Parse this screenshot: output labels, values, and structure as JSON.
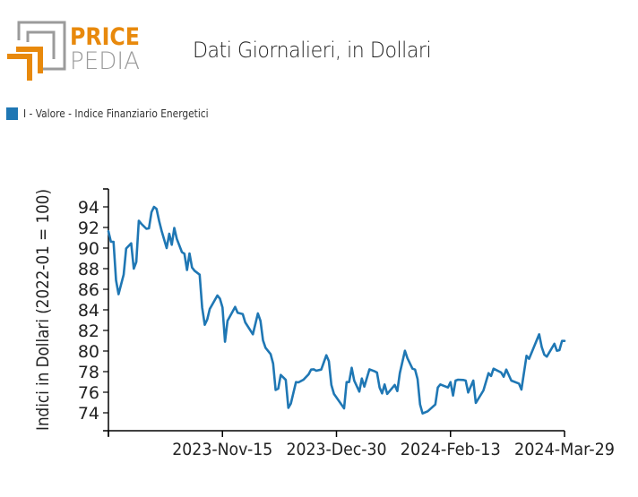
{
  "logo": {
    "word1": "PRICE",
    "word2": "PEDIA",
    "orange": "#e8890c",
    "grey": "#9b9b9b"
  },
  "header": {
    "title": "Dati Giornalieri, in Dollari"
  },
  "legend": {
    "label": "I - Valore - Indice Finanziario Energetici",
    "color": "#1f77b4"
  },
  "chart_data": {
    "type": "line",
    "title": "Dati Giornalieri, in Dollari",
    "xlabel": "",
    "ylabel": "Indici in Dollari (2022-01 = 100)",
    "xlim": [
      "2023-10-01",
      "2024-03-29"
    ],
    "ylim": [
      72.26,
      95.74
    ],
    "yticks": [
      74,
      76,
      78,
      80,
      82,
      84,
      86,
      88,
      90,
      92,
      94
    ],
    "xticks": [
      {
        "date": "2023-10-01",
        "label": ""
      },
      {
        "date": "2023-11-15",
        "label": "2023-Nov-15"
      },
      {
        "date": "2023-12-30",
        "label": "2023-Dec-30"
      },
      {
        "date": "2024-02-13",
        "label": "2024-Feb-13"
      },
      {
        "date": "2024-03-29",
        "label": "2024-Mar-29"
      }
    ],
    "grid": false,
    "legend_position": "top-left",
    "series": [
      {
        "name": "I - Valore - Indice Finanziario Energetici",
        "color": "#1f77b4",
        "x": [
          "2023-10-01",
          "2023-10-02",
          "2023-10-03",
          "2023-10-04",
          "2023-10-05",
          "2023-10-07",
          "2023-10-08",
          "2023-10-10",
          "2023-10-11",
          "2023-10-12",
          "2023-10-13",
          "2023-10-14",
          "2023-10-16",
          "2023-10-17",
          "2023-10-18",
          "2023-10-19",
          "2023-10-20",
          "2023-10-21",
          "2023-10-22",
          "2023-10-24",
          "2023-10-25",
          "2023-10-26",
          "2023-10-27",
          "2023-10-28",
          "2023-10-30",
          "2023-10-31",
          "2023-11-01",
          "2023-11-02",
          "2023-11-03",
          "2023-11-04",
          "2023-11-06",
          "2023-11-07",
          "2023-11-08",
          "2023-11-09",
          "2023-11-10",
          "2023-11-13",
          "2023-11-14",
          "2023-11-15",
          "2023-11-16",
          "2023-11-17",
          "2023-11-20",
          "2023-11-21",
          "2023-11-23",
          "2023-11-24",
          "2023-11-27",
          "2023-11-29",
          "2023-11-30",
          "2023-12-01",
          "2023-12-02",
          "2023-12-04",
          "2023-12-05",
          "2023-12-06",
          "2023-12-07",
          "2023-12-08",
          "2023-12-10",
          "2023-12-11",
          "2023-12-12",
          "2023-12-14",
          "2023-12-15",
          "2023-12-17",
          "2023-12-19",
          "2023-12-20",
          "2023-12-21",
          "2023-12-22",
          "2023-12-24",
          "2023-12-26",
          "2023-12-27",
          "2023-12-28",
          "2023-12-29",
          "2024-01-02",
          "2024-01-03",
          "2024-01-04",
          "2024-01-05",
          "2024-01-06",
          "2024-01-08",
          "2024-01-09",
          "2024-01-10",
          "2024-01-12",
          "2024-01-14",
          "2024-01-15",
          "2024-01-16",
          "2024-01-17",
          "2024-01-18",
          "2024-01-19",
          "2024-01-22",
          "2024-01-23",
          "2024-01-24",
          "2024-01-26",
          "2024-01-27",
          "2024-01-29",
          "2024-01-30",
          "2024-01-31",
          "2024-02-01",
          "2024-02-02",
          "2024-02-04",
          "2024-02-07",
          "2024-02-08",
          "2024-02-09",
          "2024-02-12",
          "2024-02-13",
          "2024-02-14",
          "2024-02-15",
          "2024-02-16",
          "2024-02-18",
          "2024-02-19",
          "2024-02-20",
          "2024-02-22",
          "2024-02-23",
          "2024-02-26",
          "2024-02-28",
          "2024-02-29",
          "2024-03-01",
          "2024-03-04",
          "2024-03-05",
          "2024-03-06",
          "2024-03-08",
          "2024-03-11",
          "2024-03-12",
          "2024-03-14",
          "2024-03-15",
          "2024-03-19",
          "2024-03-20",
          "2024-03-21",
          "2024-03-22",
          "2024-03-25",
          "2024-03-26",
          "2024-03-27",
          "2024-03-28",
          "2024-03-29"
        ],
        "values": [
          91.63,
          90.61,
          90.61,
          86.87,
          85.52,
          87.42,
          89.96,
          90.46,
          88.0,
          88.65,
          92.65,
          92.35,
          91.87,
          91.91,
          93.5,
          94.0,
          93.8,
          92.63,
          91.65,
          90.0,
          91.39,
          90.32,
          91.96,
          90.9,
          89.61,
          89.45,
          87.87,
          89.48,
          88.11,
          87.8,
          87.42,
          84.23,
          82.55,
          83.07,
          84.09,
          85.39,
          85.1,
          84.23,
          80.9,
          82.93,
          84.29,
          83.71,
          83.59,
          82.78,
          81.63,
          83.65,
          82.93,
          81.04,
          80.32,
          79.7,
          78.78,
          76.22,
          76.35,
          77.68,
          77.2,
          74.48,
          74.9,
          76.98,
          76.96,
          77.22,
          77.74,
          78.2,
          78.23,
          78.09,
          78.2,
          79.59,
          79.02,
          76.7,
          75.83,
          74.43,
          76.98,
          76.98,
          78.37,
          77.13,
          76.06,
          77.33,
          76.55,
          78.23,
          78.03,
          77.91,
          76.46,
          75.89,
          76.76,
          75.83,
          76.7,
          76.11,
          77.85,
          80.03,
          79.3,
          78.29,
          78.2,
          77.28,
          74.81,
          73.94,
          74.15,
          74.81,
          76.46,
          76.76,
          76.46,
          76.98,
          75.68,
          77.13,
          77.22,
          77.19,
          77.13,
          75.97,
          77.13,
          74.96,
          76.17,
          77.85,
          77.57,
          78.29,
          77.91,
          77.5,
          78.2,
          77.13,
          76.84,
          76.26,
          79.54,
          79.24,
          81.63,
          80.41,
          79.65,
          79.45,
          80.7,
          80.03,
          80.09,
          80.98,
          80.98
        ]
      }
    ]
  }
}
